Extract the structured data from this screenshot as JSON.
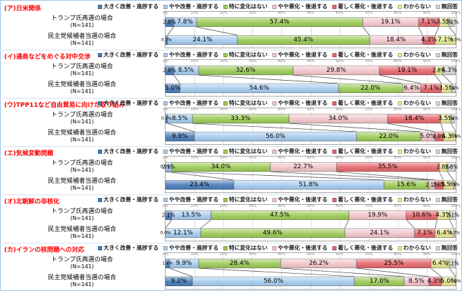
{
  "page": {
    "background": "#ffffff",
    "border_color": "#9cc3e5"
  },
  "legend": {
    "items": [
      {
        "label": "大きく改善・進捗する",
        "color": "#4a7ebb"
      },
      {
        "label": "やや改善・進捗する",
        "color": "#a8cdf0"
      },
      {
        "label": "特に変化はない",
        "color": "#9ecb5a"
      },
      {
        "label": "やや悪化・後退する",
        "color": "#f2c6cc"
      },
      {
        "label": "著しく悪化・後退する",
        "color": "#e5696e"
      },
      {
        "label": "わからない",
        "color": "#e9e997"
      },
      {
        "label": "無回答",
        "color": "#d9d9d9"
      }
    ]
  },
  "axis_ticks": [
    "0%",
    "10%",
    "20%",
    "30%",
    "40%",
    "50%",
    "60%",
    "70%",
    "80%",
    "90%",
    "100%"
  ],
  "chart_data": [
    {
      "type": "bar",
      "stacked": true,
      "orientation": "horizontal",
      "xlim": [
        0,
        100
      ],
      "title": "(ア)日米関係",
      "categories": [
        {
          "label": "トランプ氏再選の場合",
          "n": "(N=141)"
        },
        {
          "label": "民主党候補者当選の場合",
          "n": "(N=141)"
        }
      ],
      "series": [
        {
          "name": "大きく改善・進捗する",
          "values": [
            2.8,
            0.7
          ]
        },
        {
          "name": "やや改善・進捗する",
          "values": [
            7.8,
            24.1
          ]
        },
        {
          "name": "特に変化はない",
          "values": [
            57.4,
            45.4
          ]
        },
        {
          "name": "やや悪化・後退する",
          "values": [
            19.1,
            18.4
          ]
        },
        {
          "name": "著しく悪化・後退する",
          "values": [
            7.1,
            4.3
          ]
        },
        {
          "name": "わからない",
          "values": [
            3.5,
            7.1
          ]
        },
        {
          "name": "無回答",
          "values": [
            2.1,
            0.0
          ]
        }
      ]
    },
    {
      "type": "bar",
      "stacked": true,
      "orientation": "horizontal",
      "xlim": [
        0,
        100
      ],
      "title": "(イ)通商などをめぐる対中交渉",
      "categories": [
        {
          "label": "トランプ氏再選の場合",
          "n": "(N=141)"
        },
        {
          "label": "民主党候補者当選の場合",
          "n": "(N=141)"
        }
      ],
      "series": [
        {
          "name": "大きく改善・進捗する",
          "values": [
            2.8,
            5.0
          ]
        },
        {
          "name": "やや改善・進捗する",
          "values": [
            8.5,
            54.6
          ]
        },
        {
          "name": "特に変化はない",
          "values": [
            32.6,
            22.0
          ]
        },
        {
          "name": "やや悪化・後退する",
          "values": [
            29.8,
            6.4
          ]
        },
        {
          "name": "著しく悪化・後退する",
          "values": [
            19.1,
            7.1
          ]
        },
        {
          "name": "わからない",
          "values": [
            2.8,
            3.5
          ]
        },
        {
          "name": "無回答",
          "values": [
            4.3,
            1.4
          ]
        }
      ]
    },
    {
      "type": "bar",
      "stacked": true,
      "orientation": "horizontal",
      "xlim": [
        0,
        100
      ],
      "title": "(ウ)TPP11など自由貿易に向けた取り組み",
      "categories": [
        {
          "label": "トランプ氏再選の場合",
          "n": "(N=141)"
        },
        {
          "label": "民主党候補者当選の場合",
          "n": "(N=141)"
        }
      ],
      "series": [
        {
          "name": "大きく改善・進捗する",
          "values": [
            0.7,
            9.9
          ]
        },
        {
          "name": "やや改善・進捗する",
          "values": [
            8.5,
            56.0
          ]
        },
        {
          "name": "特に変化はない",
          "values": [
            33.3,
            22.0
          ]
        },
        {
          "name": "やや悪化・後退する",
          "values": [
            34.0,
            5.0
          ]
        },
        {
          "name": "著しく悪化・後退する",
          "values": [
            18.4,
            2.8
          ]
        },
        {
          "name": "わからない",
          "values": [
            3.5,
            4.3
          ]
        },
        {
          "name": "無回答",
          "values": [
            1.4,
            0.0
          ]
        }
      ]
    },
    {
      "type": "bar",
      "stacked": true,
      "orientation": "horizontal",
      "xlim": [
        0,
        100
      ],
      "title": "(エ)気候変動問題",
      "categories": [
        {
          "label": "トランプ氏再選の場合",
          "n": "(N=141)"
        },
        {
          "label": "民主党候補者当選の場合",
          "n": "(N=141)"
        }
      ],
      "series": [
        {
          "name": "大きく改善・進捗する",
          "values": [
            0.0,
            23.4
          ]
        },
        {
          "name": "やや改善・進捗する",
          "values": [
            2.1,
            51.8
          ]
        },
        {
          "name": "特に変化はない",
          "values": [
            34.0,
            15.6
          ]
        },
        {
          "name": "やや悪化・後退する",
          "values": [
            22.7,
            2.1
          ]
        },
        {
          "name": "著しく悪化・後退する",
          "values": [
            35.5,
            2.8
          ]
        },
        {
          "name": "わからない",
          "values": [
            2.8,
            3.5
          ]
        },
        {
          "name": "無回答",
          "values": [
            2.8,
            0.7
          ]
        }
      ]
    },
    {
      "type": "bar",
      "stacked": true,
      "orientation": "horizontal",
      "xlim": [
        0,
        100
      ],
      "title": "(オ)北朝鮮の非核化",
      "categories": [
        {
          "label": "トランプ氏再選の場合",
          "n": "(N=141)"
        },
        {
          "label": "民主党候補者当選の場合",
          "n": "(N=141)"
        }
      ],
      "series": [
        {
          "name": "大きく改善・進捗する",
          "values": [
            2.1,
            0.0
          ]
        },
        {
          "name": "やや改善・進捗する",
          "values": [
            13.5,
            12.1
          ]
        },
        {
          "name": "特に変化はない",
          "values": [
            47.5,
            49.6
          ]
        },
        {
          "name": "やや悪化・後退する",
          "values": [
            19.9,
            24.1
          ]
        },
        {
          "name": "著しく悪化・後退する",
          "values": [
            10.6,
            7.1
          ]
        },
        {
          "name": "わからない",
          "values": [
            4.3,
            6.4
          ]
        },
        {
          "name": "無回答",
          "values": [
            2.1,
            0.7
          ]
        }
      ]
    },
    {
      "type": "bar",
      "stacked": true,
      "orientation": "horizontal",
      "xlim": [
        0,
        100
      ],
      "title": "(カ)イランの核問題への対応",
      "categories": [
        {
          "label": "トランプ氏再選の場合",
          "n": "(N=141)"
        },
        {
          "label": "民主党候補者当選の場合",
          "n": "(N=141)"
        }
      ],
      "series": [
        {
          "name": "大きく改善・進捗する",
          "values": [
            1.4,
            9.2
          ]
        },
        {
          "name": "やや改善・進捗する",
          "values": [
            9.9,
            56.0
          ]
        },
        {
          "name": "特に変化はない",
          "values": [
            28.4,
            17.0
          ]
        },
        {
          "name": "やや悪化・後退する",
          "values": [
            26.2,
            8.5
          ]
        },
        {
          "name": "著しく悪化・後退する",
          "values": [
            25.5,
            4.3
          ]
        },
        {
          "name": "わからない",
          "values": [
            6.4,
            5.0
          ]
        },
        {
          "name": "無回答",
          "values": [
            2.1,
            0.0
          ]
        }
      ]
    }
  ]
}
